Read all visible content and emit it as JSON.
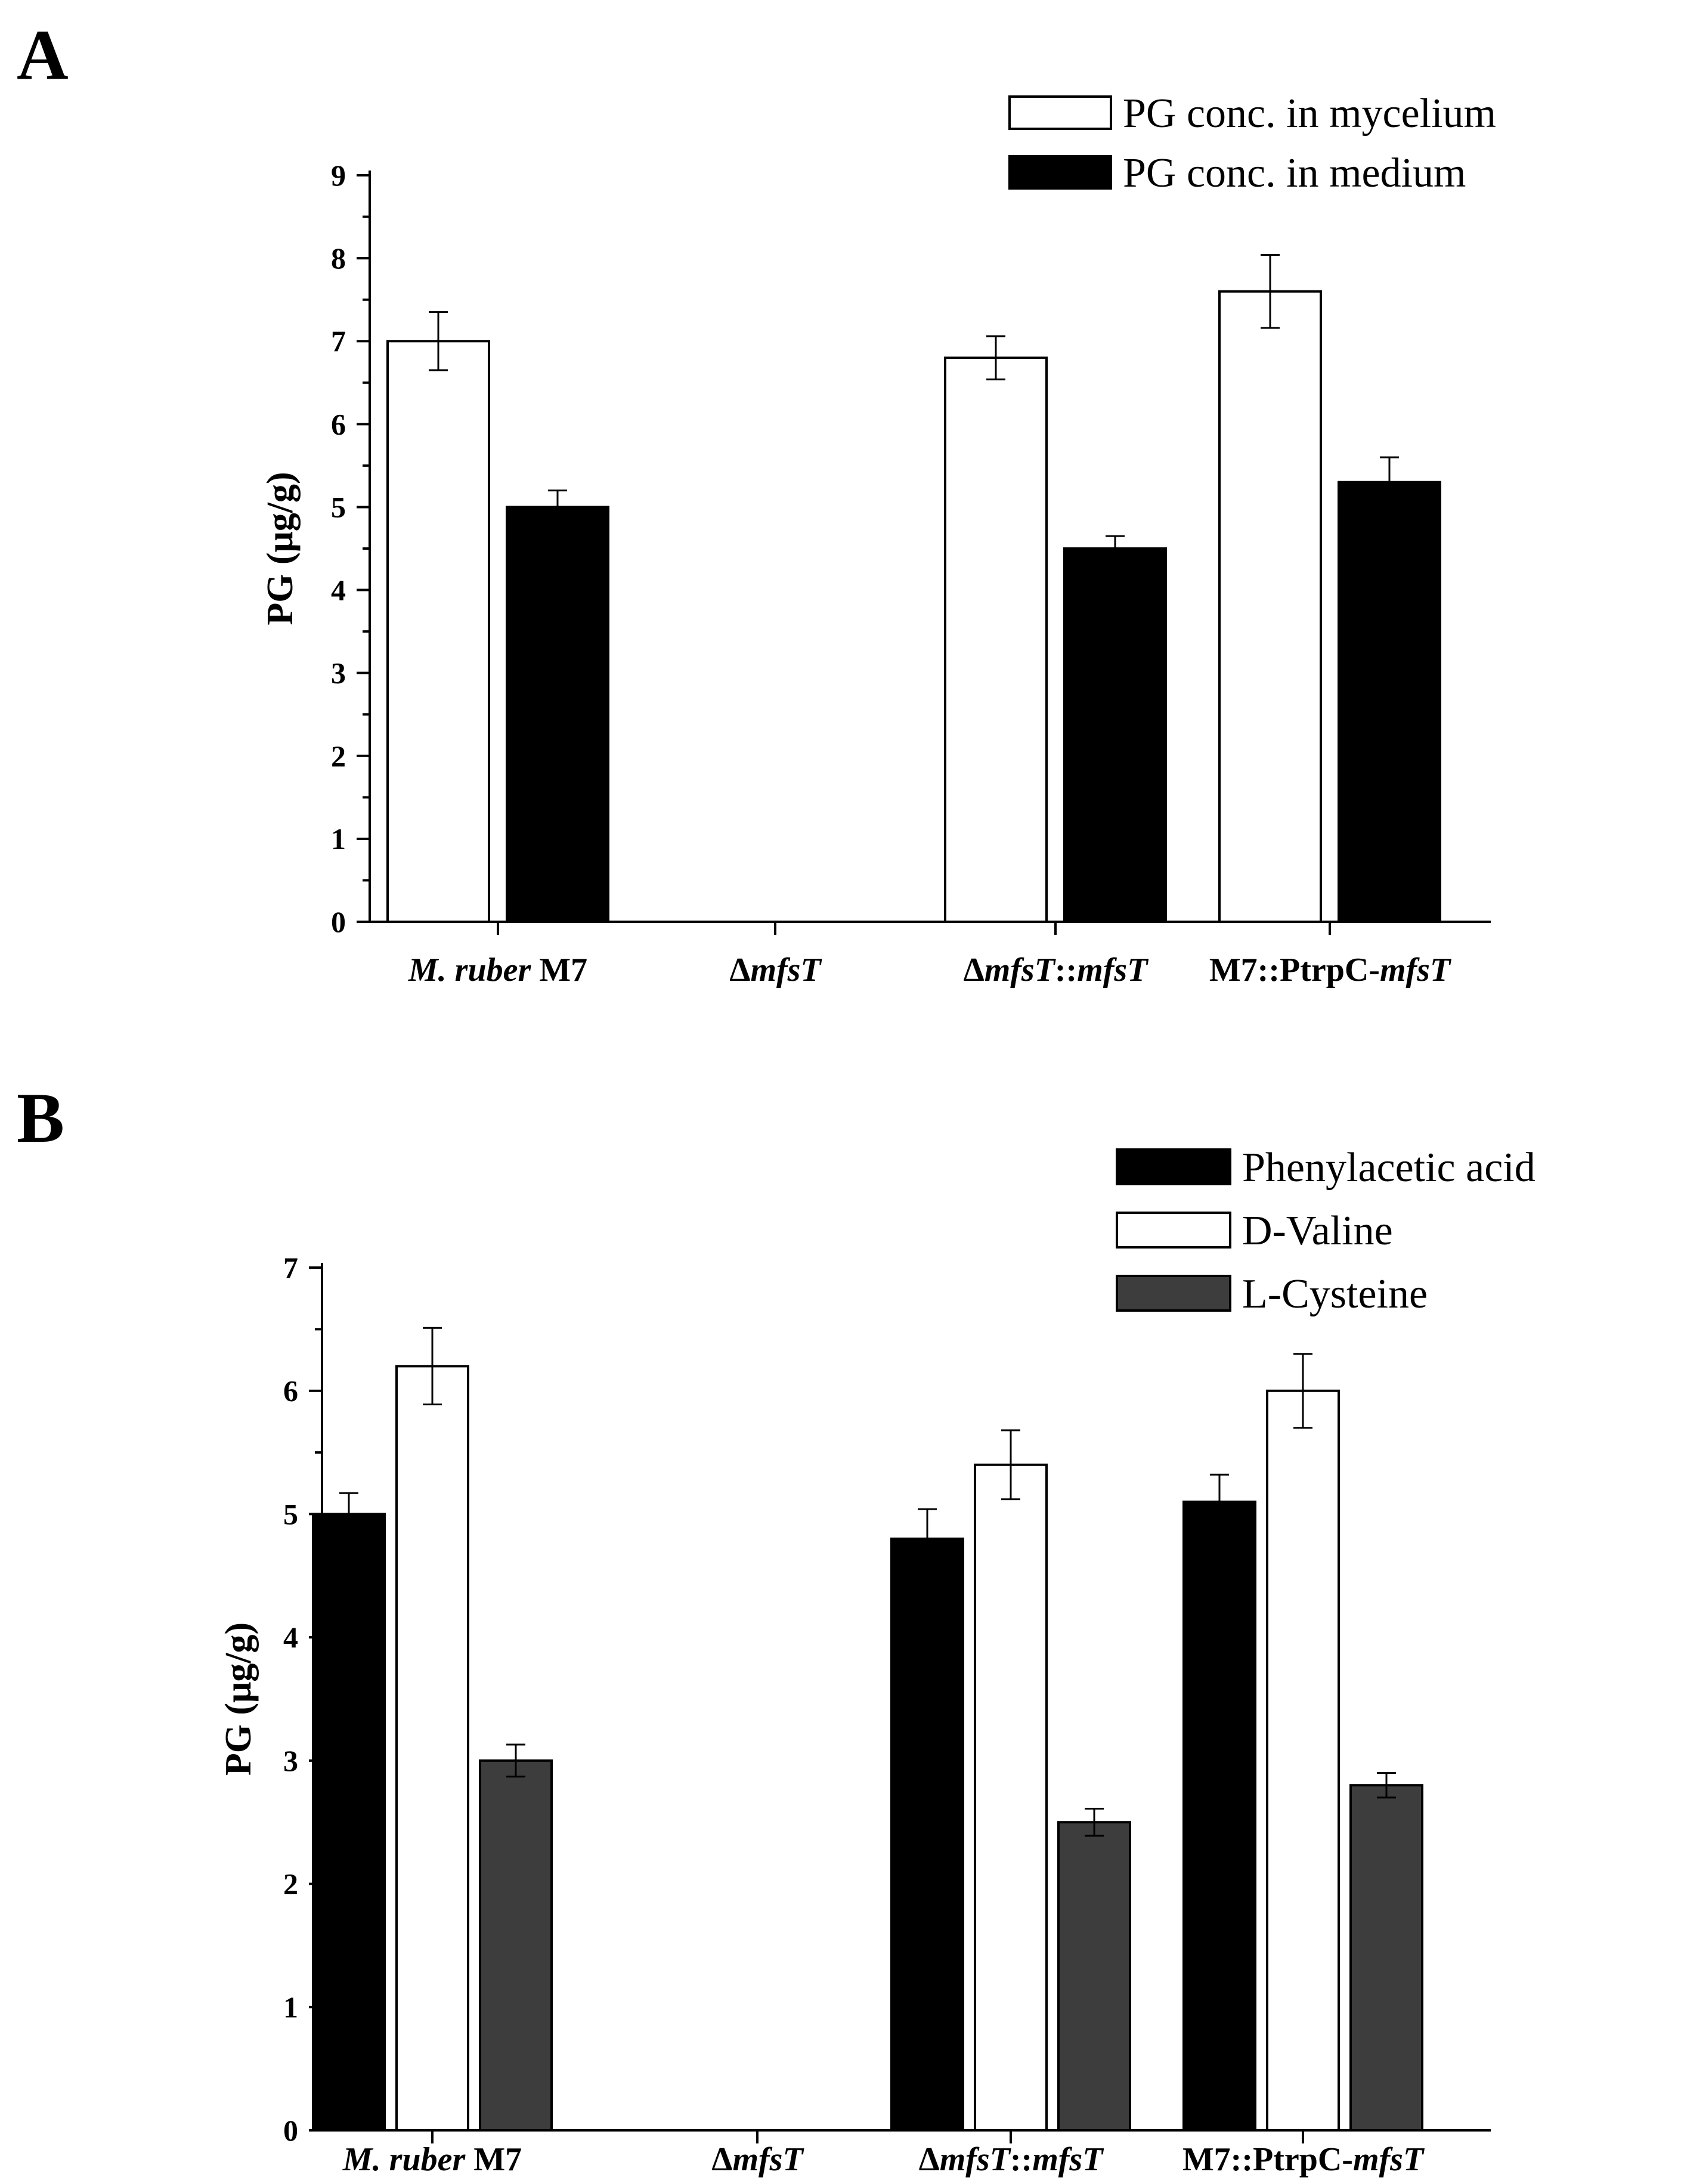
{
  "chart_data": [
    {
      "panel": "A",
      "type": "bar",
      "ylabel": "PG (μg/g)",
      "ylim": [
        0,
        9
      ],
      "yticks": [
        "0",
        "1",
        "2",
        "3",
        "4",
        "5",
        "6",
        "7",
        "8",
        "9"
      ],
      "categories": [
        [
          {
            "t": "M. ruber",
            "i": true
          },
          {
            "t": " M7",
            "i": false
          }
        ],
        [
          {
            "t": "Δ",
            "i": false
          },
          {
            "t": "mfsT",
            "i": true
          }
        ],
        [
          {
            "t": "Δ",
            "i": false
          },
          {
            "t": "mfsT",
            "i": true
          },
          {
            "t": "::",
            "i": false
          },
          {
            "t": "mfsT",
            "i": true
          }
        ],
        [
          {
            "t": "M7::PtrpC-",
            "i": false
          },
          {
            "t": "mfsT",
            "i": true
          }
        ]
      ],
      "series": [
        {
          "name": "PG conc. in mycelium",
          "color": "#ffffff",
          "values": [
            7.0,
            null,
            6.8,
            7.6
          ],
          "errors": [
            0.35,
            null,
            0.26,
            0.44
          ]
        },
        {
          "name": "PG conc. in medium",
          "color": "#000000",
          "values": [
            5.0,
            null,
            4.5,
            5.3
          ],
          "errors": [
            0.2,
            null,
            0.15,
            0.3
          ]
        }
      ],
      "legend_position": "top-right"
    },
    {
      "panel": "B",
      "type": "bar",
      "ylabel": "PG (μg/g)",
      "ylim": [
        0,
        7
      ],
      "yticks": [
        "0",
        "1",
        "2",
        "3",
        "4",
        "5",
        "6",
        "7"
      ],
      "categories": [
        [
          {
            "t": "M. ruber",
            "i": true
          },
          {
            "t": " M7",
            "i": false
          }
        ],
        [
          {
            "t": "Δ",
            "i": false
          },
          {
            "t": "mfsT",
            "i": true
          }
        ],
        [
          {
            "t": "Δ",
            "i": false
          },
          {
            "t": "mfsT",
            "i": true
          },
          {
            "t": "::",
            "i": false
          },
          {
            "t": "mfsT",
            "i": true
          }
        ],
        [
          {
            "t": "M7::PtrpC-",
            "i": false
          },
          {
            "t": "mfsT",
            "i": true
          }
        ]
      ],
      "series": [
        {
          "name": "Phenylacetic acid",
          "color": "#000000",
          "values": [
            5.0,
            null,
            4.8,
            5.1
          ],
          "errors": [
            0.17,
            null,
            0.24,
            0.22
          ]
        },
        {
          "name": "D-Valine",
          "color": "#ffffff",
          "values": [
            6.2,
            null,
            5.4,
            6.0
          ],
          "errors": [
            0.31,
            null,
            0.28,
            0.3
          ]
        },
        {
          "name": "L-Cysteine",
          "color": "#3d3d3d",
          "values": [
            3.0,
            null,
            2.5,
            2.8
          ],
          "errors": [
            0.13,
            null,
            0.11,
            0.1
          ]
        }
      ],
      "legend_position": "top-right"
    }
  ]
}
